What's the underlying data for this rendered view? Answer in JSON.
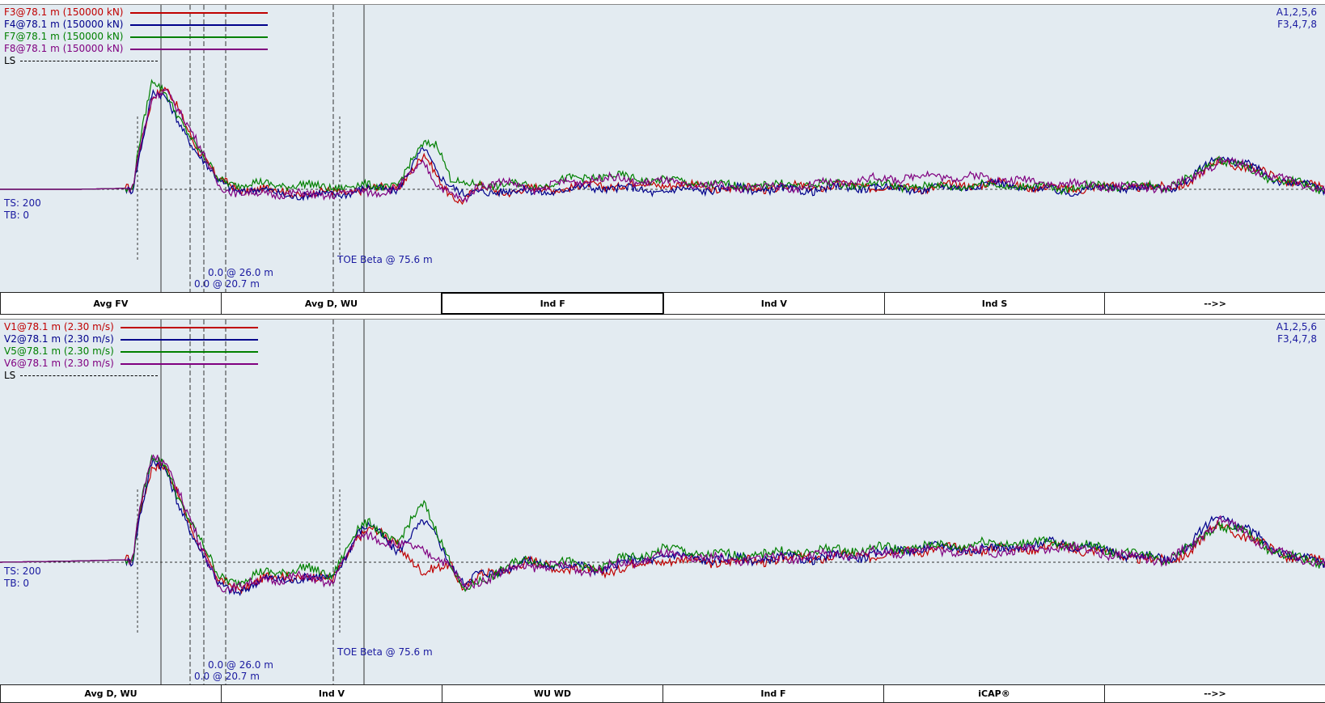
{
  "top_panel": {
    "legend": [
      {
        "label": "F3@78.1 m (150000 kN)",
        "color": "#c00000"
      },
      {
        "label": "F4@78.1 m (150000 kN)",
        "color": "#00008b"
      },
      {
        "label": "F7@78.1 m (150000 kN)",
        "color": "#008000"
      },
      {
        "label": "F8@78.1 m (150000 kN)",
        "color": "#800080"
      }
    ],
    "ls_label": "LS",
    "corner_line1": "A1,2,5,6",
    "corner_line2": "F3,4,7,8",
    "ts": "TS: 200",
    "tb": "TB: 0",
    "marker_26": "0.0 @ 26.0 m",
    "marker_20": "0.0 @ 20.7 m",
    "toe": "TOE Beta @ 75.6 m",
    "buttons": [
      "Avg FV",
      "Avg D, WU",
      "Ind F",
      "Ind V",
      "Ind S",
      "-->>"
    ],
    "active_button": 2
  },
  "bottom_panel": {
    "legend": [
      {
        "label": "V1@78.1 m (2.30 m/s)",
        "color": "#c00000"
      },
      {
        "label": "V2@78.1 m (2.30 m/s)",
        "color": "#00008b"
      },
      {
        "label": "V5@78.1 m (2.30 m/s)",
        "color": "#008000"
      },
      {
        "label": "V6@78.1 m (2.30 m/s)",
        "color": "#800080"
      }
    ],
    "ls_label": "LS",
    "corner_line1": "A1,2,5,6",
    "corner_line2": "F3,4,7,8",
    "ts": "TS: 200",
    "tb": "TB: 0",
    "marker_26": "0.0 @ 26.0 m",
    "marker_20": "0.0 @ 20.7 m",
    "toe": "TOE Beta @ 75.6 m",
    "buttons": [
      "Avg D, WU",
      "Ind V",
      "WU WD",
      "Ind F",
      "iCAP®",
      "-->>"
    ],
    "active_button": -1
  },
  "chart_data": [
    {
      "type": "line",
      "x": [
        0,
        0.06,
        0.1,
        0.105,
        0.115,
        0.125,
        0.135,
        0.15,
        0.165,
        0.18,
        0.2,
        0.23,
        0.26,
        0.28,
        0.3,
        0.32,
        0.33,
        0.34,
        0.35,
        0.36,
        0.38,
        0.4,
        0.45,
        0.5,
        0.55,
        0.6,
        0.65,
        0.7,
        0.75,
        0.8,
        0.85,
        0.88,
        0.9,
        0.92,
        0.94,
        0.96,
        0.98,
        1.0
      ],
      "series": [
        {
          "name": "F3@78.1 m (150000 kN)",
          "values": [
            0,
            0,
            0.01,
            0.35,
            0.82,
            0.88,
            0.7,
            0.35,
            0.08,
            0,
            0,
            -0.04,
            -0.02,
            0,
            0.02,
            0.3,
            0.1,
            -0.05,
            -0.1,
            0.02,
            -0.02,
            0,
            0.03,
            0.05,
            0,
            0.02,
            0.03,
            0.01,
            0.06,
            0,
            0.03,
            0.01,
            0.08,
            0.25,
            0.2,
            0.12,
            0.05,
            0
          ]
        },
        {
          "name": "F4@78.1 m (150000 kN)",
          "values": [
            0,
            0,
            0.01,
            0.3,
            0.85,
            0.8,
            0.6,
            0.3,
            0.06,
            0,
            -0.02,
            -0.06,
            -0.03,
            0,
            0.01,
            0.35,
            0.15,
            0.05,
            -0.05,
            -0.04,
            0,
            -0.03,
            0.02,
            -0.02,
            0.01,
            -0.01,
            0.02,
            0,
            0.05,
            -0.02,
            0.02,
            0,
            0.1,
            0.3,
            0.22,
            0.1,
            0.04,
            0
          ]
        },
        {
          "name": "F7@78.1 m (150000 kN)",
          "values": [
            0,
            0,
            0.01,
            0.4,
            0.95,
            0.85,
            0.65,
            0.33,
            0.1,
            0.04,
            0.05,
            0.03,
            0.02,
            0.03,
            0.04,
            0.4,
            0.42,
            0.1,
            0.02,
            0.05,
            0.04,
            0.03,
            0.12,
            0.08,
            0.03,
            0.04,
            0.05,
            0.02,
            0.04,
            0.01,
            0.04,
            0.03,
            0.1,
            0.28,
            0.18,
            0.1,
            0.05,
            0
          ]
        },
        {
          "name": "F8@78.1 m (150000 kN)",
          "values": [
            0,
            0,
            0.01,
            0.32,
            0.8,
            0.9,
            0.7,
            0.38,
            0.05,
            -0.05,
            -0.03,
            -0.05,
            -0.04,
            -0.02,
            0,
            0.25,
            0.05,
            -0.05,
            -0.12,
            0.04,
            0.06,
            0,
            0.1,
            0.06,
            0.02,
            0.02,
            0.08,
            0.12,
            0.1,
            0.05,
            0.02,
            0.01,
            0.09,
            0.26,
            0.2,
            0.12,
            0.05,
            0
          ]
        }
      ]
    },
    {
      "type": "line",
      "x": [
        0,
        0.06,
        0.1,
        0.105,
        0.115,
        0.125,
        0.135,
        0.15,
        0.165,
        0.18,
        0.2,
        0.23,
        0.25,
        0.27,
        0.28,
        0.3,
        0.32,
        0.33,
        0.34,
        0.35,
        0.36,
        0.38,
        0.4,
        0.45,
        0.5,
        0.55,
        0.6,
        0.65,
        0.7,
        0.75,
        0.8,
        0.85,
        0.88,
        0.9,
        0.92,
        0.94,
        0.96,
        0.98,
        1.0
      ],
      "series": [
        {
          "name": "V1@78.1 m (2.30 m/s)",
          "values": [
            0,
            0.01,
            0.02,
            0.4,
            0.75,
            0.72,
            0.5,
            0.15,
            -0.15,
            -0.2,
            -0.12,
            -0.1,
            -0.15,
            0.2,
            0.25,
            0.15,
            -0.1,
            -0.05,
            0,
            -0.2,
            -0.12,
            -0.05,
            0,
            -0.08,
            0.02,
            0,
            0.03,
            0.05,
            0.1,
            0.1,
            0.12,
            0.05,
            0,
            0.1,
            0.3,
            0.2,
            0.1,
            0.02,
            0
          ]
        },
        {
          "name": "V2@78.1 m (2.30 m/s)",
          "values": [
            0,
            0.01,
            0.02,
            0.35,
            0.78,
            0.7,
            0.45,
            0.12,
            -0.18,
            -0.22,
            -0.14,
            -0.12,
            -0.13,
            0.22,
            0.28,
            0.1,
            0.3,
            0.2,
            0,
            -0.18,
            -0.1,
            -0.05,
            0,
            -0.05,
            0.05,
            0.02,
            0.03,
            0.05,
            0.12,
            0.1,
            0.15,
            0.06,
            0.02,
            0.15,
            0.38,
            0.25,
            0.12,
            0.02,
            0
          ]
        },
        {
          "name": "V5@78.1 m (2.30 m/s)",
          "values": [
            0,
            0.01,
            0.02,
            0.4,
            0.8,
            0.75,
            0.5,
            0.18,
            -0.1,
            -0.15,
            -0.08,
            -0.05,
            -0.1,
            0.25,
            0.3,
            0.15,
            0.45,
            0.25,
            0,
            -0.25,
            -0.15,
            -0.05,
            0.02,
            -0.04,
            0.1,
            0.05,
            0.08,
            0.1,
            0.12,
            0.15,
            0.15,
            0.08,
            0.03,
            0.12,
            0.3,
            0.22,
            0.1,
            0.02,
            0
          ]
        },
        {
          "name": "V6@78.1 m (2.30 m/s)",
          "values": [
            0,
            0.01,
            0.02,
            0.38,
            0.82,
            0.78,
            0.55,
            0.15,
            -0.17,
            -0.2,
            -0.13,
            -0.12,
            -0.15,
            0.18,
            0.22,
            0.12,
            0.1,
            0.05,
            -0.05,
            -0.2,
            -0.14,
            -0.08,
            -0.02,
            -0.06,
            0.05,
            0.02,
            0.04,
            0.06,
            0.1,
            0.08,
            0.12,
            0.05,
            0.01,
            0.12,
            0.34,
            0.22,
            0.1,
            0.02,
            0
          ]
        }
      ]
    }
  ]
}
